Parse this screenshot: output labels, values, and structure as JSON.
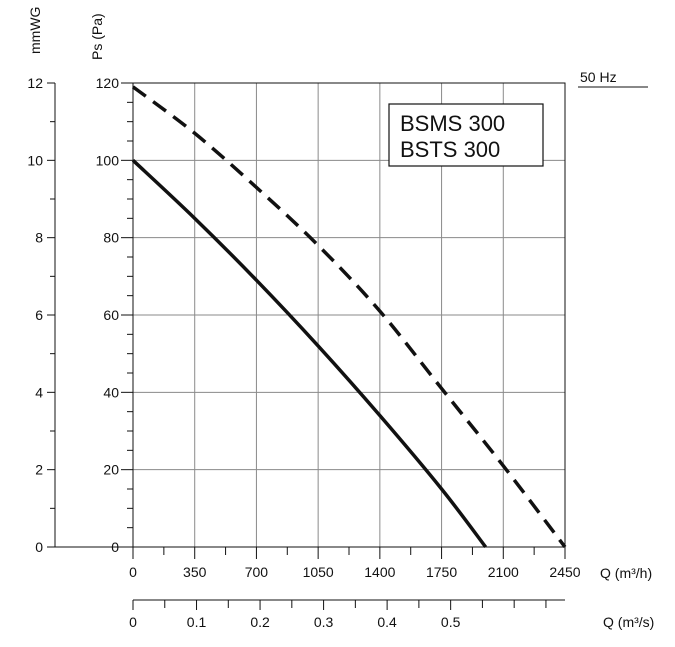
{
  "chart_data": {
    "type": "line",
    "frequency_label": "50 Hz",
    "model_labels": [
      "BSMS 300",
      "BSTS 300"
    ],
    "y_primary": {
      "label": "Ps (Pa)",
      "range": [
        0,
        120
      ],
      "ticks": [
        0,
        20,
        40,
        60,
        80,
        100,
        120
      ],
      "tick_labels": [
        "0",
        "20",
        "40",
        "60",
        "80",
        "100",
        "120"
      ]
    },
    "y_secondary": {
      "label": "mmWG",
      "range": [
        0,
        12
      ],
      "ticks": [
        0,
        2,
        4,
        6,
        8,
        10,
        12
      ],
      "tick_labels": [
        "0",
        "2",
        "4",
        "6",
        "8",
        "10",
        "12"
      ]
    },
    "x_primary": {
      "label": "Q (m³/h)",
      "range": [
        0,
        2450
      ],
      "ticks": [
        0,
        350,
        700,
        1050,
        1400,
        1750,
        2100,
        2450
      ],
      "tick_labels": [
        "0",
        "350",
        "700",
        "1050",
        "1400",
        "1750",
        "2100",
        "2450"
      ]
    },
    "x_secondary": {
      "label": "Q (m³/s)",
      "range": [
        0,
        0.68
      ],
      "ticks": [
        0,
        0.1,
        0.2,
        0.3,
        0.4,
        0.5
      ],
      "tick_labels": [
        "0",
        "0.1",
        "0.2",
        "0.3",
        "0.4",
        "0.5"
      ]
    },
    "grid": true,
    "series": [
      {
        "style": "solid",
        "x": [
          0,
          350,
          700,
          1050,
          1400,
          1750,
          2000
        ],
        "y": [
          100,
          85,
          69,
          52,
          34,
          15,
          0
        ]
      },
      {
        "style": "dashed",
        "x": [
          0,
          350,
          700,
          1050,
          1400,
          1750,
          2100,
          2450
        ],
        "y": [
          119,
          107,
          93,
          78,
          61,
          41,
          21,
          0
        ]
      }
    ]
  }
}
